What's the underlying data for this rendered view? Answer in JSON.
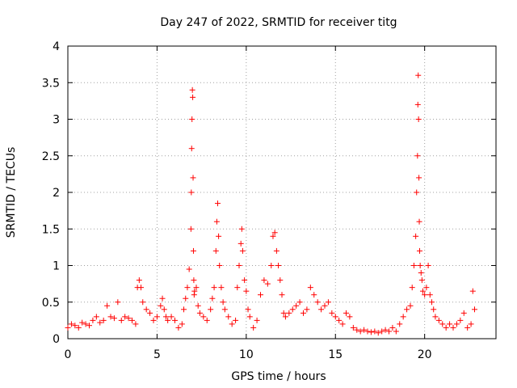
{
  "chart_data": {
    "type": "scatter",
    "title": "Day 247 of 2022, SRMTID for receiver titg",
    "xlabel": "GPS time / hours",
    "ylabel": "SRMTID / TECUs",
    "xlim": [
      0,
      24
    ],
    "ylim": [
      0,
      4
    ],
    "xticks": [
      "0",
      "5",
      "10",
      "15",
      "20"
    ],
    "yticks": [
      "0",
      "0.5",
      "1",
      "1.5",
      "2",
      "2.5",
      "3",
      "3.5",
      "4"
    ],
    "grid": true,
    "marker": "+",
    "color": "#ff0000",
    "series": [
      {
        "name": "titg",
        "x": [
          0.0,
          0.2,
          0.4,
          0.6,
          0.8,
          1.0,
          1.2,
          1.4,
          1.6,
          1.8,
          2.0,
          2.2,
          2.4,
          2.6,
          2.8,
          3.0,
          3.2,
          3.4,
          3.6,
          3.8,
          3.9,
          4.0,
          4.1,
          4.2,
          4.4,
          4.6,
          4.8,
          5.0,
          5.2,
          5.3,
          5.4,
          5.5,
          5.6,
          5.8,
          6.0,
          6.2,
          6.4,
          6.5,
          6.6,
          6.7,
          6.8,
          6.9,
          6.92,
          6.94,
          6.96,
          6.98,
          7.0,
          7.02,
          7.04,
          7.06,
          7.08,
          7.1,
          7.2,
          7.3,
          7.4,
          7.6,
          7.8,
          8.0,
          8.1,
          8.2,
          8.3,
          8.35,
          8.4,
          8.45,
          8.5,
          8.6,
          8.7,
          8.8,
          9.0,
          9.2,
          9.4,
          9.5,
          9.6,
          9.7,
          9.75,
          9.8,
          9.9,
          10.0,
          10.1,
          10.2,
          10.4,
          10.6,
          10.8,
          11.0,
          11.2,
          11.4,
          11.5,
          11.6,
          11.7,
          11.8,
          11.9,
          12.0,
          12.1,
          12.2,
          12.4,
          12.6,
          12.8,
          13.0,
          13.2,
          13.4,
          13.6,
          13.8,
          14.0,
          14.2,
          14.4,
          14.6,
          14.8,
          15.0,
          15.2,
          15.4,
          15.6,
          15.8,
          16.0,
          16.2,
          16.4,
          16.6,
          16.8,
          17.0,
          17.2,
          17.4,
          17.6,
          17.8,
          18.0,
          18.2,
          18.4,
          18.6,
          18.8,
          19.0,
          19.2,
          19.3,
          19.4,
          19.5,
          19.55,
          19.6,
          19.62,
          19.64,
          19.66,
          19.68,
          19.7,
          19.72,
          19.75,
          19.8,
          19.85,
          19.9,
          20.0,
          20.1,
          20.2,
          20.3,
          20.4,
          20.5,
          20.6,
          20.8,
          21.0,
          21.2,
          21.4,
          21.6,
          21.8,
          22.0,
          22.2,
          22.4,
          22.6,
          22.7,
          22.8
        ],
        "y": [
          0.15,
          0.2,
          0.18,
          0.15,
          0.22,
          0.2,
          0.18,
          0.25,
          0.3,
          0.22,
          0.25,
          0.45,
          0.3,
          0.28,
          0.5,
          0.25,
          0.3,
          0.28,
          0.25,
          0.2,
          0.7,
          0.8,
          0.7,
          0.5,
          0.4,
          0.35,
          0.25,
          0.3,
          0.45,
          0.55,
          0.4,
          0.3,
          0.25,
          0.3,
          0.25,
          0.15,
          0.2,
          0.4,
          0.55,
          0.7,
          0.95,
          1.5,
          2.0,
          2.6,
          3.0,
          3.4,
          3.3,
          2.2,
          1.2,
          0.8,
          0.6,
          0.65,
          0.7,
          0.45,
          0.35,
          0.3,
          0.25,
          0.4,
          0.55,
          0.7,
          1.2,
          1.6,
          1.85,
          1.4,
          1.0,
          0.7,
          0.5,
          0.4,
          0.3,
          0.2,
          0.25,
          0.7,
          1.0,
          1.3,
          1.5,
          1.2,
          0.8,
          0.65,
          0.4,
          0.3,
          0.15,
          0.25,
          0.6,
          0.8,
          0.75,
          1.0,
          1.4,
          1.45,
          1.2,
          1.0,
          0.8,
          0.6,
          0.35,
          0.3,
          0.35,
          0.4,
          0.45,
          0.5,
          0.35,
          0.4,
          0.7,
          0.6,
          0.5,
          0.4,
          0.45,
          0.5,
          0.35,
          0.3,
          0.25,
          0.2,
          0.35,
          0.3,
          0.15,
          0.12,
          0.1,
          0.12,
          0.1,
          0.09,
          0.1,
          0.08,
          0.1,
          0.12,
          0.1,
          0.15,
          0.1,
          0.2,
          0.3,
          0.4,
          0.45,
          0.7,
          1.0,
          1.4,
          2.0,
          2.5,
          3.2,
          3.6,
          3.0,
          2.2,
          1.6,
          1.2,
          1.0,
          0.9,
          0.8,
          0.65,
          0.6,
          0.7,
          1.0,
          0.6,
          0.5,
          0.4,
          0.3,
          0.25,
          0.2,
          0.15,
          0.2,
          0.15,
          0.2,
          0.25,
          0.35,
          0.15,
          0.2,
          0.65,
          0.4
        ]
      }
    ]
  }
}
